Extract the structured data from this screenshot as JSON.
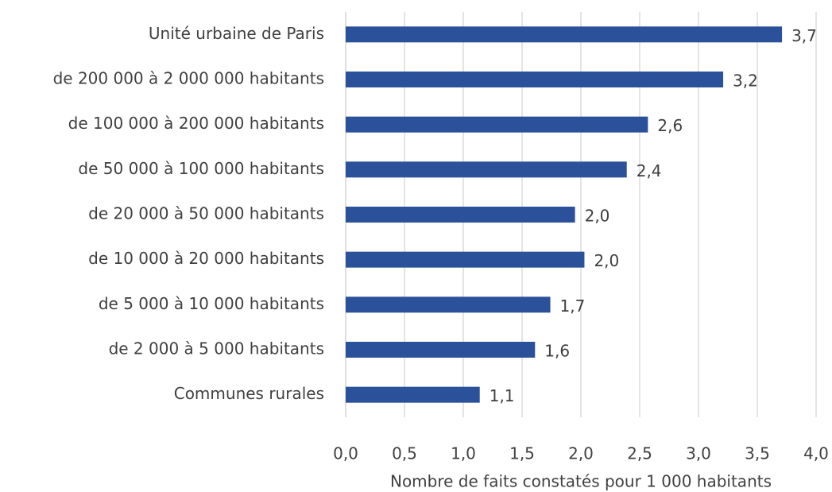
{
  "chart_data": {
    "type": "barh",
    "x_label": "Nombre de faits constatés pour 1 000 habitants",
    "categories": [
      "Unité urbaine de Paris",
      "de 200 000 à 2 000 000 habitants",
      "de 100 000 à 200 000 habitants",
      "de 50 000 à 100 000 habitants",
      "de 20 000 à 50 000 habitants",
      "de 10 000 à 20 000 habitants",
      "de 5 000 à 10 000 habitants",
      "de 2 000 à 5 000 habitants",
      "Communes rurales"
    ],
    "values": [
      3.71,
      3.21,
      2.57,
      2.39,
      1.95,
      2.03,
      1.74,
      1.61,
      1.14
    ],
    "value_labels": [
      "3,7",
      "3,2",
      "2,6",
      "2,4",
      "2,0",
      "2,0",
      "1,7",
      "1,6",
      "1,1"
    ],
    "color": "#2a5199",
    "xlim": [
      0,
      4
    ],
    "xticks": [
      {
        "value": 0,
        "label": "0,0"
      },
      {
        "value": 0.5,
        "label": "0,5"
      },
      {
        "value": 1,
        "label": "1,0"
      },
      {
        "value": 1.5,
        "label": "1,5"
      },
      {
        "value": 2,
        "label": "2,0"
      },
      {
        "value": 2.5,
        "label": "2,5"
      },
      {
        "value": 3,
        "label": "3,0"
      },
      {
        "value": 3.5,
        "label": "3,5"
      },
      {
        "value": 4,
        "label": "4,0"
      }
    ],
    "grid": true
  }
}
